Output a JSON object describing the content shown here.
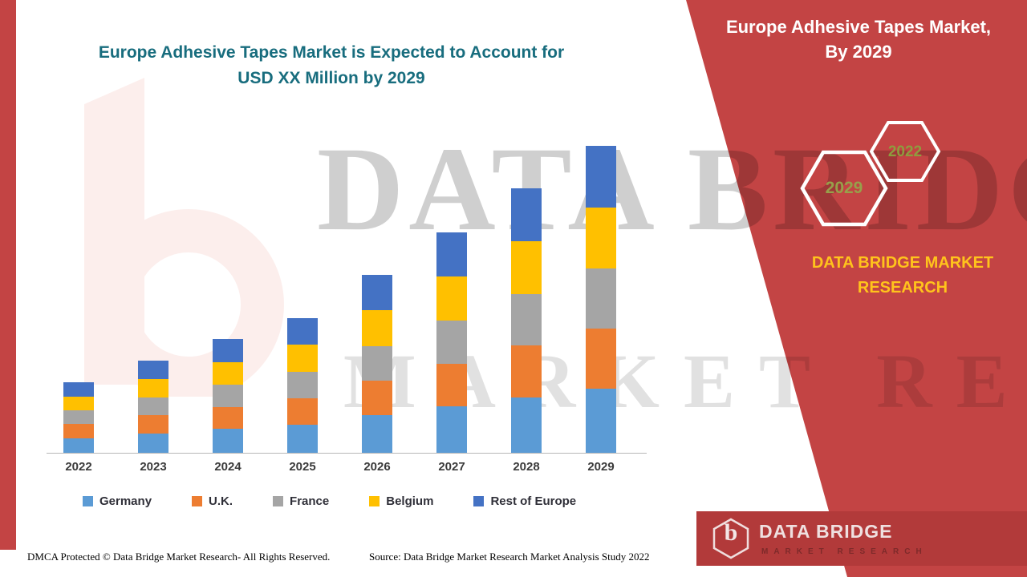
{
  "page": {
    "title_line1": "Europe Adhesive Tapes Market is Expected to Account for",
    "title_line2": "USD XX Million by 2029",
    "footer_dmca": "DMCA Protected © Data Bridge Market Research- All Rights Reserved.",
    "footer_source": "Source: Data Bridge Market Research Market Analysis Study 2022"
  },
  "right_panel": {
    "heading_line1": "Europe Adhesive Tapes Market,",
    "heading_line2": "By 2029",
    "hexagons": [
      {
        "label": "2029"
      },
      {
        "label": "2022"
      }
    ],
    "brand_line1": "DATA BRIDGE MARKET",
    "brand_line2": "RESEARCH",
    "logo": {
      "letter": "b",
      "name": "DATA BRIDGE",
      "tagline": "MARKET RESEARCH"
    }
  },
  "watermark": {
    "line1": "DATA BRIDGE",
    "line2": "MARKET RESEARCH"
  },
  "colors": {
    "accent_red": "#C34444",
    "band_red": "#B23A3A",
    "title_teal": "#186D7E",
    "brand_gold": "#FFC31C",
    "hex_olive": "#97A04A"
  },
  "chart_data": {
    "type": "bar",
    "stacked": true,
    "title": "Europe Adhesive Tapes Market is Expected to Account for USD XX Million by 2029",
    "xlabel": "",
    "ylabel": "",
    "value_axis": "not shown (values in USD XX Million, unlabeled)",
    "units": "relative index (2029 total = 100)",
    "ylim": [
      0,
      110
    ],
    "grid": false,
    "legend_position": "bottom",
    "categories": [
      "2022",
      "2023",
      "2024",
      "2025",
      "2026",
      "2027",
      "2028",
      "2029"
    ],
    "series": [
      {
        "name": "Germany",
        "color": "#5B9BD5",
        "values": [
          4.8,
          6.3,
          7.8,
          9.2,
          12.2,
          15.1,
          18.1,
          21.0
        ]
      },
      {
        "name": "U.K.",
        "color": "#ED7D31",
        "values": [
          4.5,
          5.9,
          7.2,
          8.6,
          11.3,
          14.0,
          16.8,
          19.5
        ]
      },
      {
        "name": "France",
        "color": "#A5A5A5",
        "values": [
          4.5,
          5.9,
          7.2,
          8.6,
          11.3,
          14.0,
          16.8,
          19.5
        ]
      },
      {
        "name": "Belgium",
        "color": "#FFC000",
        "values": [
          4.6,
          6.0,
          7.4,
          8.8,
          11.6,
          14.4,
          17.2,
          20.0
        ]
      },
      {
        "name": "Rest of Europe",
        "color": "#4472C4",
        "values": [
          4.6,
          6.0,
          7.4,
          8.8,
          11.6,
          14.4,
          17.2,
          20.0
        ]
      }
    ],
    "totals": [
      23.0,
      30.1,
      37.0,
      44.0,
      58.0,
      71.9,
      86.1,
      100.0
    ]
  }
}
